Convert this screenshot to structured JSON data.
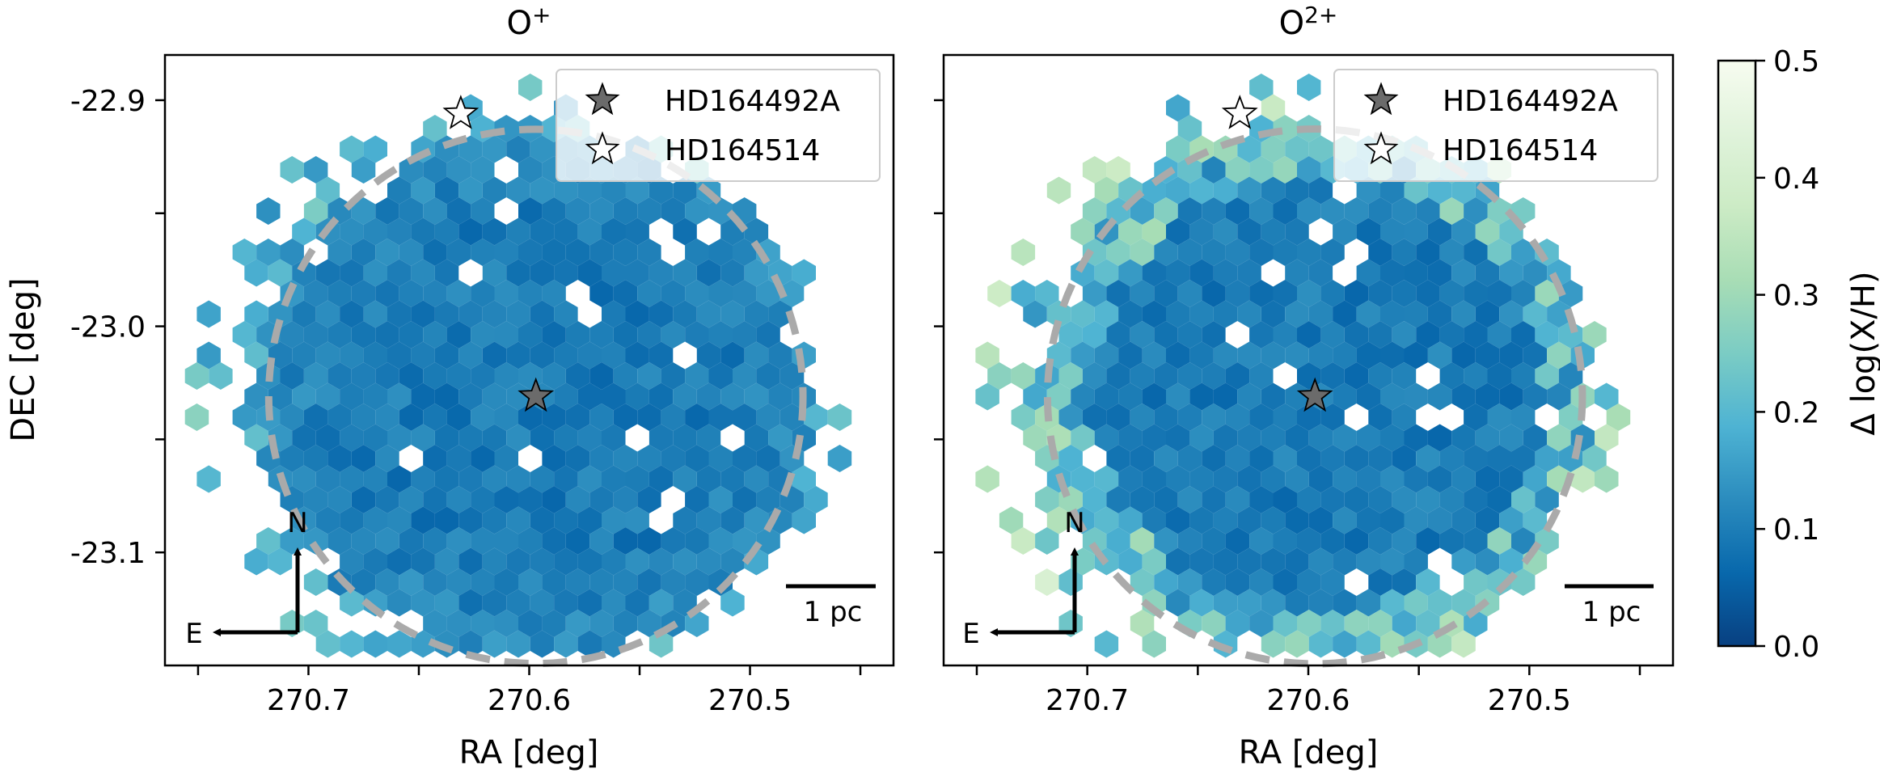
{
  "chart_data": [
    {
      "type": "hexbin-map",
      "title": "O",
      "title_sup": "+",
      "xlabel": "RA [deg]",
      "ylabel": "DEC [deg]",
      "xlim": [
        270.765,
        270.435
      ],
      "ylim": [
        -23.15,
        -22.88
      ],
      "xticks": [
        270.7,
        270.6,
        270.5
      ],
      "xtick_labels": [
        "270.7",
        "270.6",
        "270.5"
      ],
      "yticks": [
        -22.9,
        -23.0,
        -23.1
      ],
      "ytick_labels": [
        "-22.9",
        "-23.0",
        "-23.1"
      ],
      "legend_position": "top-right",
      "legend": [
        {
          "label": "HD164492A",
          "marker": "star",
          "color": "#6b6b6b"
        },
        {
          "label": "HD164514",
          "marker": "star",
          "color": "#ffffff"
        }
      ],
      "stars": [
        {
          "name": "HD164492A",
          "ra": 270.597,
          "dec": -23.031
        },
        {
          "name": "HD164514",
          "ra": 270.631,
          "dec": -22.906
        }
      ],
      "circle": {
        "center_ra": 270.597,
        "center_dec": -23.031,
        "radius_deg": 0.121
      },
      "scalebar_label": "1 pc",
      "compass": {
        "north": "N",
        "east": "E"
      },
      "hex_seed": 11
    },
    {
      "type": "hexbin-map",
      "title": "O",
      "title_sup": "2+",
      "xlabel": "RA [deg]",
      "ylabel": "",
      "xlim": [
        270.765,
        270.435
      ],
      "ylim": [
        -23.15,
        -22.88
      ],
      "xticks": [
        270.7,
        270.6,
        270.5
      ],
      "xtick_labels": [
        "270.7",
        "270.6",
        "270.5"
      ],
      "yticks": [
        -22.9,
        -23.0,
        -23.1
      ],
      "ytick_labels": [],
      "legend_position": "top-right",
      "legend": [
        {
          "label": "HD164492A",
          "marker": "star",
          "color": "#6b6b6b"
        },
        {
          "label": "HD164514",
          "marker": "star",
          "color": "#ffffff"
        }
      ],
      "stars": [
        {
          "name": "HD164492A",
          "ra": 270.597,
          "dec": -23.031
        },
        {
          "name": "HD164514",
          "ra": 270.631,
          "dec": -22.906
        }
      ],
      "circle": {
        "center_ra": 270.597,
        "center_dec": -23.031,
        "radius_deg": 0.121
      },
      "scalebar_label": "1 pc",
      "compass": {
        "north": "N",
        "east": "E"
      },
      "hex_seed": 29
    }
  ],
  "colorbar": {
    "label": "Δ log(X/H)",
    "range": [
      0.0,
      0.5
    ],
    "ticks": [
      0.0,
      0.1,
      0.2,
      0.3,
      0.4,
      0.5
    ],
    "tick_labels": [
      "0.0",
      "0.1",
      "0.2",
      "0.3",
      "0.4",
      "0.5"
    ],
    "colormap": "GnBu_r",
    "colors": [
      "#084081",
      "#0868ac",
      "#2b8cbe",
      "#4eb3d3",
      "#7bccc4",
      "#a8ddb5",
      "#ccebc5",
      "#e0f3db",
      "#f7fcf0"
    ]
  },
  "colors": {
    "circle": "#aaaaaa",
    "star_primary": "#6b6b6b",
    "star_secondary": "#ffffff",
    "legend_border": "#cccccc"
  }
}
